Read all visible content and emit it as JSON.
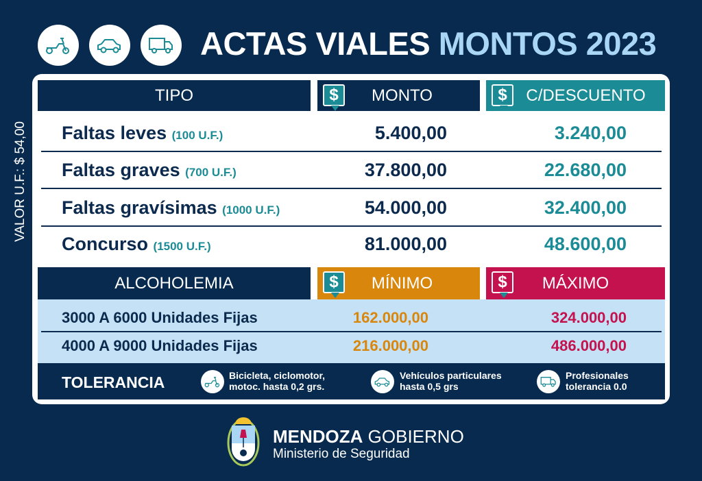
{
  "header": {
    "title_main": "ACTAS VIALES",
    "title_highlight": "MONTOS 2023",
    "icons": [
      "scooter-icon",
      "car-icon",
      "truck-icon"
    ]
  },
  "side_label": "VALOR U.F.: $ 54,00",
  "fines": {
    "headers": {
      "tipo": "TIPO",
      "monto": "MONTO",
      "descuento": "C/DESCUENTO",
      "currency_symbol": "$"
    },
    "rows": [
      {
        "label": "Faltas leves",
        "units": "(100 U.F.)",
        "monto": "5.400,00",
        "descuento": "3.240,00"
      },
      {
        "label": "Faltas graves",
        "units": "(700 U.F.)",
        "monto": "37.800,00",
        "descuento": "22.680,00"
      },
      {
        "label": "Faltas gravísimas",
        "units": "(1000 U.F.)",
        "monto": "54.000,00",
        "descuento": "32.400,00"
      },
      {
        "label": "Concurso",
        "units": "(1500 U.F.)",
        "monto": "81.000,00",
        "descuento": "48.600,00"
      }
    ]
  },
  "alcohol": {
    "headers": {
      "tipo": "ALCOHOLEMIA",
      "minimo": "MÍNIMO",
      "maximo": "MÁXIMO",
      "currency_symbol": "$"
    },
    "rows": [
      {
        "label": "3000 A 6000 Unidades Fijas",
        "minimo": "162.000,00",
        "maximo": "324.000,00"
      },
      {
        "label": "4000 A 9000 Unidades Fijas",
        "minimo": "216.000,00",
        "maximo": "486.000,00"
      }
    ]
  },
  "tolerancia": {
    "label": "TOLERANCIA",
    "items": [
      {
        "icon": "scooter-icon",
        "line1": "Bicicleta, ciclomotor,",
        "line2": "motoc. hasta 0,2 grs."
      },
      {
        "icon": "car-icon",
        "line1": "Vehículos particulares",
        "line2": "hasta 0,5 grs"
      },
      {
        "icon": "truck-icon",
        "line1": "Profesionales",
        "line2": "tolerancia 0.0"
      }
    ]
  },
  "footer": {
    "brand_bold": "MENDOZA",
    "brand_light": "GOBIERNO",
    "subtitle": "Ministerio de Seguridad"
  },
  "colors": {
    "background": "#072a4e",
    "teal": "#1b8b95",
    "orange": "#d9860c",
    "magenta": "#c4124f",
    "light_blue": "#c4e1f5",
    "title_highlight": "#a9d6f4"
  }
}
